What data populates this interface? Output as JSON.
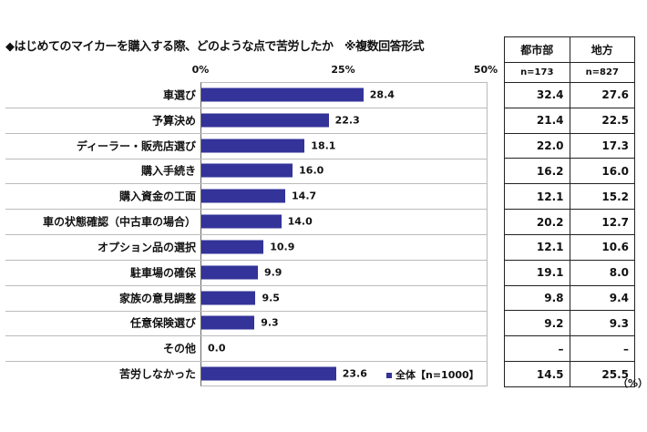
{
  "chart_data": {
    "type": "bar",
    "orientation": "horizontal",
    "title": "◆はじめてのマイカーを購入する際、どのような点で苦労したか　※複数回答形式",
    "categories": [
      "車選び",
      "予算決め",
      "ディーラー・販売店選び",
      "購入手続き",
      "購入資金の工面",
      "車の状態確認（中古車の場合）",
      "オプション品の選択",
      "駐車場の確保",
      "家族の意見調整",
      "任意保険選び",
      "その他",
      "苦労しなかった"
    ],
    "series": [
      {
        "name": "全体【n=1000】",
        "values": [
          28.4,
          22.3,
          18.1,
          16.0,
          14.7,
          14.0,
          10.9,
          9.9,
          9.5,
          9.3,
          0.0,
          23.6
        ],
        "color": "#333399"
      }
    ],
    "xlim": [
      0,
      50
    ],
    "xticks": [
      "0%",
      "25%",
      "50%"
    ],
    "legend": "bottom-right",
    "unit": "（%）"
  },
  "table": {
    "columns": [
      {
        "name": "都市部",
        "n": "n=173"
      },
      {
        "name": "地方",
        "n": "n=827"
      }
    ],
    "rows": [
      [
        "32.4",
        "27.6"
      ],
      [
        "21.4",
        "22.5"
      ],
      [
        "22.0",
        "17.3"
      ],
      [
        "16.2",
        "16.0"
      ],
      [
        "12.1",
        "15.2"
      ],
      [
        "20.2",
        "12.7"
      ],
      [
        "12.1",
        "10.6"
      ],
      [
        "19.1",
        "8.0"
      ],
      [
        "9.8",
        "9.4"
      ],
      [
        "9.2",
        "9.3"
      ],
      [
        "–",
        "–"
      ],
      [
        "14.5",
        "25.5"
      ]
    ]
  }
}
